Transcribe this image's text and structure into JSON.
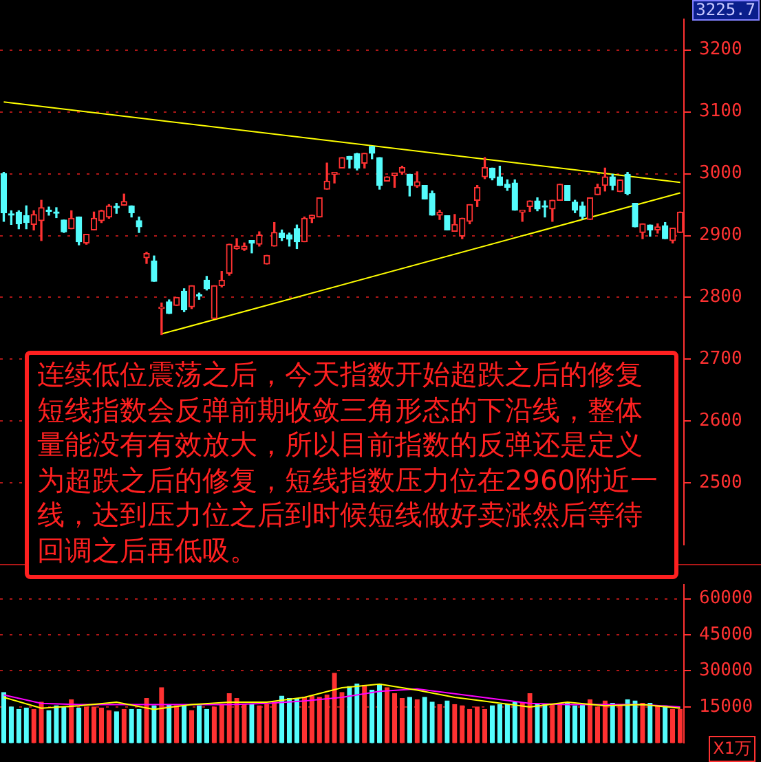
{
  "chart_data": [
    {
      "type": "candlestick",
      "categories": [
        null,
        null,
        null,
        null,
        null,
        null,
        null,
        null,
        null,
        null,
        null,
        null,
        null,
        null,
        null,
        null,
        null,
        null,
        null,
        null,
        null,
        null,
        null,
        null,
        null,
        null,
        null,
        null,
        null,
        null,
        null,
        null,
        null,
        null,
        null,
        null,
        null,
        null,
        null,
        null,
        null,
        null,
        null,
        null,
        null,
        null,
        null,
        null,
        null,
        null,
        null,
        null,
        null,
        null,
        null,
        null,
        null,
        null,
        null,
        null,
        null,
        null,
        null,
        null,
        null,
        null,
        null,
        null,
        null,
        null,
        null,
        null,
        null,
        null,
        null,
        null,
        null,
        null,
        null,
        null,
        null,
        null,
        null,
        null,
        null,
        null,
        null,
        null,
        null,
        null,
        null
      ],
      "ohlc": [
        [
          3000,
          3002,
          2923,
          2937
        ],
        [
          2935,
          2940,
          2918,
          2933
        ],
        [
          2938,
          2940,
          2911,
          2919
        ],
        [
          2932,
          2948,
          2911,
          2921
        ],
        [
          2918,
          2940,
          2909,
          2934
        ],
        [
          2924,
          2957,
          2892,
          2945
        ],
        [
          2941,
          2946,
          2933,
          2939
        ],
        [
          2937,
          2945,
          2929,
          2936
        ],
        [
          2925,
          2925,
          2905,
          2906
        ],
        [
          2911,
          2940,
          2911,
          2928
        ],
        [
          2930,
          2930,
          2885,
          2890
        ],
        [
          2888,
          2902,
          2886,
          2902
        ],
        [
          2909,
          2938,
          2909,
          2928
        ],
        [
          2924,
          2941,
          2921,
          2940
        ],
        [
          2930,
          2950,
          2928,
          2948
        ],
        [
          2946,
          2952,
          2936,
          2945
        ],
        [
          2949,
          2967,
          2949,
          2955
        ],
        [
          2948,
          2948,
          2930,
          2937
        ],
        [
          2924,
          2930,
          2905,
          2914
        ],
        [
          2864,
          2873,
          2855,
          2871
        ],
        [
          2859,
          2867,
          2826,
          2826
        ],
        [
          2782,
          2791,
          2740,
          2784
        ],
        [
          2793,
          2796,
          2774,
          2774
        ],
        [
          2787,
          2800,
          2787,
          2800
        ],
        [
          2810,
          2814,
          2777,
          2780
        ],
        [
          2785,
          2819,
          2782,
          2819
        ],
        [
          2803,
          2807,
          2797,
          2802
        ],
        [
          2828,
          2834,
          2812,
          2814
        ],
        [
          2766,
          2819,
          2766,
          2819
        ],
        [
          2819,
          2842,
          2817,
          2828
        ],
        [
          2839,
          2886,
          2836,
          2886
        ],
        [
          2879,
          2895,
          2878,
          2883
        ],
        [
          2878,
          2888,
          2876,
          2883
        ],
        [
          2892,
          2892,
          2872,
          2888
        ],
        [
          2886,
          2906,
          2883,
          2901
        ],
        [
          2854,
          2868,
          2854,
          2868
        ],
        [
          2883,
          2921,
          2883,
          2905
        ],
        [
          2904,
          2909,
          2892,
          2897
        ],
        [
          2901,
          2904,
          2883,
          2894
        ],
        [
          2911,
          2917,
          2879,
          2890
        ],
        [
          2890,
          2930,
          2890,
          2928
        ],
        [
          2928,
          2933,
          2921,
          2933
        ],
        [
          2930,
          2961,
          2930,
          2961
        ],
        [
          2975,
          3017,
          2975,
          2988
        ],
        [
          2999,
          3002,
          2985,
          3002
        ],
        [
          3009,
          3026,
          3009,
          3026
        ],
        [
          3028,
          3028,
          3009,
          3023
        ],
        [
          3032,
          3033,
          3006,
          3009
        ],
        [
          3017,
          3033,
          3009,
          3033
        ],
        [
          3044,
          3044,
          3024,
          3033
        ],
        [
          3026,
          3026,
          2975,
          2981
        ],
        [
          2988,
          2995,
          2988,
          2995
        ],
        [
          2997,
          3001,
          2978,
          3001
        ],
        [
          3002,
          3012,
          2999,
          3010
        ],
        [
          2999,
          2999,
          2964,
          2981
        ],
        [
          2980,
          3003,
          2978,
          2987
        ],
        [
          2981,
          2981,
          2959,
          2959
        ],
        [
          2968,
          2972,
          2933,
          2933
        ],
        [
          2933,
          2941,
          2926,
          2938
        ],
        [
          2932,
          2932,
          2909,
          2909
        ],
        [
          2907,
          2934,
          2907,
          2918
        ],
        [
          2899,
          2928,
          2895,
          2928
        ],
        [
          2923,
          2950,
          2919,
          2950
        ],
        [
          2957,
          2981,
          2947,
          2978
        ],
        [
          2995,
          3026,
          2992,
          3010
        ],
        [
          3009,
          3009,
          2990,
          2993
        ],
        [
          2995,
          3012,
          2981,
          2981
        ],
        [
          2983,
          2990,
          2973,
          2978
        ],
        [
          2985,
          2990,
          2941,
          2941
        ],
        [
          2938,
          2941,
          2923,
          2941
        ],
        [
          2947,
          2956,
          2939,
          2956
        ],
        [
          2956,
          2961,
          2940,
          2943
        ],
        [
          2948,
          2956,
          2930,
          2946
        ],
        [
          2943,
          2957,
          2923,
          2957
        ],
        [
          2957,
          2983,
          2957,
          2983
        ],
        [
          2981,
          2981,
          2957,
          2957
        ],
        [
          2954,
          2957,
          2937,
          2941
        ],
        [
          2948,
          2954,
          2927,
          2931
        ],
        [
          2926,
          2961,
          2926,
          2961
        ],
        [
          2966,
          2983,
          2966,
          2978
        ],
        [
          2981,
          3009,
          2972,
          2995
        ],
        [
          2995,
          2999,
          2974,
          2981
        ],
        [
          2971,
          2990,
          2971,
          2990
        ],
        [
          2999,
          3002,
          2966,
          2968
        ],
        [
          2952,
          2952,
          2914,
          2914
        ],
        [
          2905,
          2919,
          2895,
          2919
        ],
        [
          2917,
          2917,
          2899,
          2909
        ],
        [
          2909,
          2919,
          2904,
          2914
        ],
        [
          2916,
          2921,
          2895,
          2895
        ],
        [
          2892,
          2912,
          2888,
          2912
        ],
        [
          2905,
          2938,
          2905,
          2938
        ]
      ],
      "colors": [
        "#54fcfc",
        "#54fcfc",
        "#54fcfc",
        "#54fcfc",
        "#ff3232",
        "#ff3232",
        "#54fcfc",
        "#54fcfc",
        "#54fcfc",
        "#ff3232",
        "#54fcfc",
        "#ff3232",
        "#ff3232",
        "#ff3232",
        "#ff3232",
        "#54fcfc",
        "#ff3232",
        "#54fcfc",
        "#54fcfc",
        "#ff3232",
        "#54fcfc",
        "#ff3232",
        "#54fcfc",
        "#ff3232",
        "#54fcfc",
        "#ff3232",
        "#54fcfc",
        "#54fcfc",
        "#ff3232",
        "#ff3232",
        "#ff3232",
        "#ff3232",
        "#ff3232",
        "#54fcfc",
        "#ff3232",
        "#ff3232",
        "#ff3232",
        "#54fcfc",
        "#54fcfc",
        "#54fcfc",
        "#ff3232",
        "#ff3232",
        "#ff3232",
        "#ff3232",
        "#ff3232",
        "#ff3232",
        "#54fcfc",
        "#54fcfc",
        "#ff3232",
        "#54fcfc",
        "#54fcfc",
        "#ff3232",
        "#ff3232",
        "#ff3232",
        "#54fcfc",
        "#ff3232",
        "#54fcfc",
        "#54fcfc",
        "#ff3232",
        "#54fcfc",
        "#ff3232",
        "#ff3232",
        "#ff3232",
        "#ff3232",
        "#ff3232",
        "#54fcfc",
        "#54fcfc",
        "#54fcfc",
        "#54fcfc",
        "#ff3232",
        "#ff3232",
        "#54fcfc",
        "#54fcfc",
        "#ff3232",
        "#ff3232",
        "#54fcfc",
        "#54fcfc",
        "#54fcfc",
        "#ff3232",
        "#ff3232",
        "#ff3232",
        "#54fcfc",
        "#ff3232",
        "#54fcfc",
        "#54fcfc",
        "#ff3232",
        "#54fcfc",
        "#ff3232",
        "#54fcfc",
        "#ff3232",
        "#ff3232"
      ],
      "series": [
        {
          "type": "line",
          "color": "#ffff00",
          "values": [
            3116,
            null,
            null,
            null,
            null,
            null,
            null,
            null,
            null,
            null,
            null,
            null,
            null,
            null,
            null,
            null,
            null,
            null,
            null,
            null,
            null,
            null,
            null,
            null,
            null,
            null,
            null,
            null,
            null,
            null,
            null,
            null,
            null,
            null,
            null,
            null,
            null,
            null,
            null,
            null,
            null,
            null,
            null,
            null,
            null,
            null,
            null,
            null,
            null,
            null,
            null,
            null,
            null,
            null,
            null,
            null,
            null,
            null,
            null,
            null,
            null,
            null,
            null,
            null,
            null,
            null,
            null,
            null,
            null,
            null,
            null,
            null,
            null,
            null,
            null,
            null,
            null,
            null,
            null,
            null,
            null,
            null,
            null,
            null,
            null,
            null,
            null,
            null,
            null,
            null,
            2986
          ]
        },
        {
          "type": "line",
          "color": "#ffff00",
          "values": [
            null,
            null,
            null,
            null,
            null,
            null,
            null,
            null,
            null,
            null,
            null,
            null,
            null,
            null,
            null,
            null,
            null,
            null,
            null,
            null,
            null,
            2741,
            null,
            null,
            null,
            null,
            null,
            null,
            null,
            null,
            null,
            null,
            null,
            null,
            null,
            null,
            null,
            null,
            null,
            null,
            null,
            null,
            null,
            null,
            null,
            null,
            null,
            null,
            null,
            null,
            null,
            null,
            null,
            null,
            null,
            null,
            null,
            null,
            null,
            null,
            null,
            null,
            null,
            null,
            null,
            null,
            null,
            null,
            null,
            null,
            null,
            null,
            null,
            null,
            null,
            null,
            null,
            null,
            null,
            null,
            null,
            null,
            null,
            null,
            null,
            null,
            null,
            null,
            null,
            null,
            2969
          ]
        }
      ],
      "ylim": [
        2400,
        3250
      ],
      "yticks": [
        2500,
        2600,
        2700,
        2800,
        2900,
        3000,
        3100,
        3200
      ],
      "grid": "y",
      "tick_labels": "y",
      "annotations": [
        "3225.7",
        "连续低位震荡之后，今天指数开始超跌之后的修复短线指数会反弹前期收敛三角形态的下沿线，整体量能没有有效放大，所以目前指数的反弹还是定义为超跌之后的修复，短线指数压力位在2960附近一线，达到压力位之后到时候短线做好卖涨然后等待回调之后再低吸。"
      ]
    },
    {
      "type": "bar",
      "categories": [
        null,
        null,
        null,
        null,
        null,
        null,
        null,
        null,
        null,
        null,
        null,
        null,
        null,
        null,
        null,
        null,
        null,
        null,
        null,
        null,
        null,
        null,
        null,
        null,
        null,
        null,
        null,
        null,
        null,
        null,
        null,
        null,
        null,
        null,
        null,
        null,
        null,
        null,
        null,
        null,
        null,
        null,
        null,
        null,
        null,
        null,
        null,
        null,
        null,
        null,
        null,
        null,
        null,
        null,
        null,
        null,
        null,
        null,
        null,
        null,
        null,
        null,
        null,
        null,
        null,
        null,
        null,
        null,
        null,
        null,
        null,
        null,
        null,
        null,
        null,
        null,
        null,
        null,
        null,
        null,
        null,
        null,
        null,
        null,
        null,
        null,
        null,
        null,
        null,
        null,
        null
      ],
      "values": [
        21000,
        15000,
        14000,
        14500,
        14000,
        17000,
        13500,
        15500,
        15000,
        18000,
        14500,
        15000,
        15000,
        14500,
        13500,
        13000,
        14000,
        14000,
        14000,
        18500,
        15500,
        23000,
        16000,
        15500,
        15500,
        13500,
        15500,
        14000,
        15000,
        16000,
        20500,
        18500,
        16000,
        16000,
        15500,
        16000,
        17000,
        19500,
        18500,
        18500,
        19000,
        19500,
        19000,
        20000,
        29000,
        21000,
        23500,
        24500,
        24000,
        22000,
        24500,
        23000,
        20500,
        18500,
        19000,
        18000,
        19000,
        17000,
        16000,
        17500,
        16000,
        15500,
        14000,
        15000,
        14000,
        15500,
        16000,
        16000,
        17000,
        16500,
        20500,
        16000,
        16000,
        16000,
        16500,
        16500,
        15500,
        16000,
        18000,
        15000,
        17500,
        16500,
        16000,
        18000,
        17500,
        16500,
        16500,
        15500,
        15500,
        14000,
        14000
      ],
      "colors": [
        "#54fcfc",
        "#54fcfc",
        "#54fcfc",
        "#54fcfc",
        "#ff3232",
        "#ff3232",
        "#54fcfc",
        "#54fcfc",
        "#54fcfc",
        "#ff3232",
        "#54fcfc",
        "#ff3232",
        "#ff3232",
        "#ff3232",
        "#ff3232",
        "#54fcfc",
        "#ff3232",
        "#54fcfc",
        "#54fcfc",
        "#ff3232",
        "#54fcfc",
        "#ff3232",
        "#54fcfc",
        "#ff3232",
        "#54fcfc",
        "#ff3232",
        "#54fcfc",
        "#54fcfc",
        "#ff3232",
        "#ff3232",
        "#ff3232",
        "#ff3232",
        "#ff3232",
        "#54fcfc",
        "#ff3232",
        "#ff3232",
        "#ff3232",
        "#54fcfc",
        "#54fcfc",
        "#54fcfc",
        "#ff3232",
        "#ff3232",
        "#ff3232",
        "#ff3232",
        "#ff3232",
        "#ff3232",
        "#54fcfc",
        "#54fcfc",
        "#ff3232",
        "#54fcfc",
        "#54fcfc",
        "#ff3232",
        "#ff3232",
        "#ff3232",
        "#54fcfc",
        "#ff3232",
        "#54fcfc",
        "#54fcfc",
        "#ff3232",
        "#54fcfc",
        "#ff3232",
        "#ff3232",
        "#ff3232",
        "#ff3232",
        "#ff3232",
        "#54fcfc",
        "#54fcfc",
        "#54fcfc",
        "#54fcfc",
        "#ff3232",
        "#ff3232",
        "#54fcfc",
        "#54fcfc",
        "#ff3232",
        "#ff3232",
        "#54fcfc",
        "#54fcfc",
        "#54fcfc",
        "#ff3232",
        "#ff3232",
        "#ff3232",
        "#54fcfc",
        "#ff3232",
        "#54fcfc",
        "#54fcfc",
        "#ff3232",
        "#54fcfc",
        "#ff3232",
        "#54fcfc",
        "#ff3232",
        "#ff3232"
      ],
      "series": [
        {
          "type": "line",
          "color": "#ffff00",
          "values": [
            19000,
            null,
            null,
            null,
            null,
            14500,
            null,
            null,
            null,
            null,
            15500,
            null,
            null,
            null,
            null,
            17000,
            null,
            null,
            null,
            null,
            14000,
            null,
            null,
            null,
            null,
            16000,
            null,
            null,
            null,
            null,
            17000,
            null,
            null,
            null,
            null,
            17000,
            null,
            null,
            null,
            null,
            19000,
            null,
            null,
            null,
            null,
            23000,
            null,
            null,
            null,
            null,
            24500,
            null,
            null,
            null,
            null,
            22000,
            null,
            null,
            null,
            null,
            19000,
            null,
            null,
            null,
            null,
            17000,
            null,
            null,
            null,
            null,
            15000,
            null,
            null,
            null,
            null,
            17000,
            null,
            null,
            null,
            null,
            15500,
            null,
            null,
            null,
            null,
            16000,
            null,
            null,
            null,
            null,
            14500
          ]
        },
        {
          "type": "line",
          "color": "#ff00ff",
          "values": [
            20000,
            null,
            null,
            null,
            null,
            16500,
            null,
            null,
            null,
            null,
            16000,
            null,
            null,
            null,
            null,
            16000,
            null,
            null,
            null,
            null,
            16000,
            null,
            null,
            null,
            null,
            16000,
            null,
            null,
            null,
            null,
            16000,
            null,
            null,
            null,
            null,
            16500,
            null,
            null,
            null,
            null,
            17500,
            null,
            null,
            null,
            null,
            19000,
            null,
            null,
            null,
            null,
            21500,
            null,
            null,
            null,
            null,
            22500,
            null,
            null,
            null,
            null,
            20500,
            null,
            null,
            null,
            null,
            18500,
            null,
            null,
            null,
            null,
            16500,
            null,
            null,
            null,
            null,
            16000,
            null,
            null,
            null,
            null,
            16000,
            null,
            null,
            null,
            null,
            16000,
            null,
            null,
            null,
            null,
            15000
          ]
        }
      ],
      "ylim": [
        0,
        66000
      ],
      "yticks": [
        15000,
        30000,
        45000,
        60000
      ],
      "grid": "y",
      "tick_labels": "y",
      "annotations": [
        "X1万"
      ]
    }
  ]
}
